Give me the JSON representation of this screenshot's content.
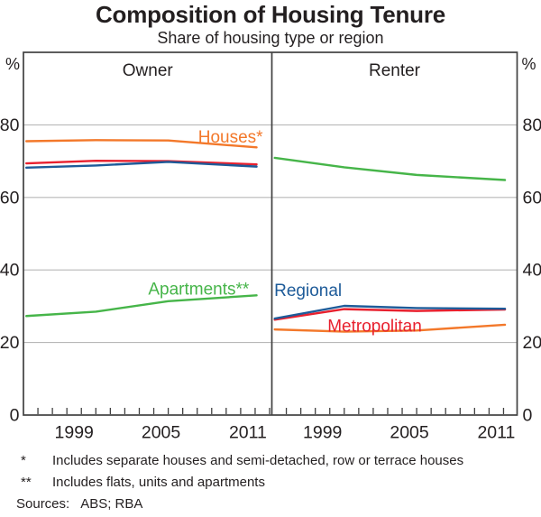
{
  "title": "Composition of Housing Tenure",
  "subtitle": "Share of housing type or region",
  "footnotes": [
    {
      "marker": "*",
      "text": "Includes separate houses and semi-detached, row or terrace houses"
    },
    {
      "marker": "**",
      "text": "Includes flats, units and apartments"
    }
  ],
  "sources": {
    "label": "Sources:",
    "value": "ABS; RBA"
  },
  "chart_data": {
    "type": "line",
    "title": "Composition of Housing Tenure",
    "subtitle": "Share of housing type or region",
    "unit": "%",
    "ylim": [
      0,
      100
    ],
    "yticks": [
      0,
      20,
      40,
      60,
      80
    ],
    "grid_values": [
      20,
      40,
      60,
      80
    ],
    "x_tick_year_start": 1997,
    "x_tick_year_end": 2013,
    "x_label_years": [
      1999,
      2005,
      2011
    ],
    "years": [
      "1996",
      "2001",
      "2006",
      "2011-12"
    ],
    "x_positions": [
      1996.2,
      2001,
      2006,
      2012.1
    ],
    "legend_position": "inline-labels",
    "grid": true,
    "colors": {
      "houses": "#f3782a",
      "apartments": "#46b549",
      "metropolitan": "#e8202e",
      "regional": "#1e5b99"
    },
    "panels": [
      {
        "title": "Owner",
        "series": [
          {
            "name": "Houses",
            "label": "Houses*",
            "color": "#f3782a",
            "values": [
              75.5,
              75.8,
              75.7,
              73.8
            ],
            "label_at": {
              "year": 2010.3,
              "value": 76.7
            }
          },
          {
            "name": "Apartments",
            "label": "Apartments**",
            "color": "#46b549",
            "values": [
              27.3,
              28.5,
              31.4,
              33.0
            ],
            "label_at": {
              "year": 2008.1,
              "value": 34.8
            }
          },
          {
            "name": "Metropolitan",
            "label": "",
            "color": "#e8202e",
            "values": [
              69.4,
              70.1,
              70.0,
              69.1
            ]
          },
          {
            "name": "Regional",
            "label": "",
            "color": "#1e5b99",
            "values": [
              68.2,
              68.8,
              69.8,
              68.5
            ]
          }
        ]
      },
      {
        "title": "Renter",
        "series": [
          {
            "name": "Apartments",
            "label": "",
            "color": "#46b549",
            "values": [
              70.9,
              68.3,
              66.2,
              64.8
            ]
          },
          {
            "name": "Houses",
            "label": "",
            "color": "#f3782a",
            "values": [
              23.6,
              23.0,
              23.3,
              24.9
            ]
          },
          {
            "name": "Metropolitan",
            "label": "Metropolitan",
            "color": "#e8202e",
            "values": [
              26.3,
              29.2,
              28.7,
              29.1
            ],
            "label_at": {
              "year": 2003.1,
              "value": 24.6
            }
          },
          {
            "name": "Regional",
            "label": "Regional",
            "color": "#1e5b99",
            "values": [
              26.6,
              30.1,
              29.5,
              29.3
            ],
            "label_at": {
              "year": 1998.5,
              "value": 34.5
            }
          }
        ]
      }
    ]
  }
}
